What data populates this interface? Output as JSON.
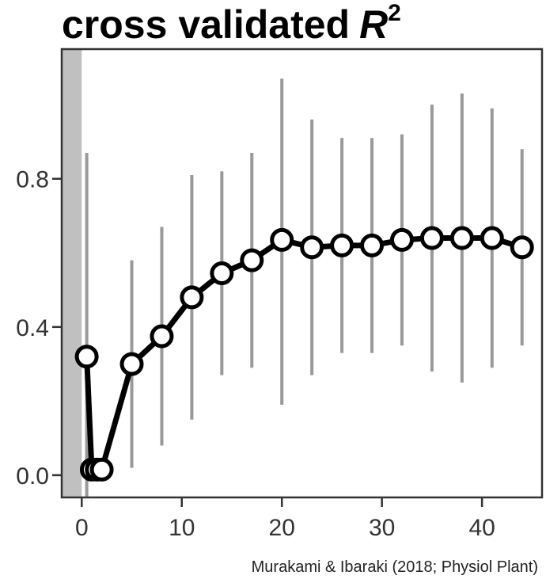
{
  "chart_data": {
    "type": "line",
    "title": "cross validated",
    "title_symbol": "R",
    "title_superscript": "2",
    "xlabel": "",
    "ylabel": "",
    "xlim": [
      -2,
      46
    ],
    "ylim": [
      -0.06,
      1.15
    ],
    "xticks": [
      0,
      10,
      20,
      30,
      40
    ],
    "yticks": [
      0.0,
      0.4,
      0.8
    ],
    "ytick_labels": [
      "0.0",
      "0.4",
      "0.8"
    ],
    "grid": false,
    "shaded_region": {
      "x": [
        -2,
        0
      ],
      "color": "#c0c0c0"
    },
    "points": [
      {
        "x": 0.5,
        "y": 0.32,
        "ymin": null,
        "ymax": 0.87
      },
      {
        "x": 1,
        "y": 0.015,
        "ymin": null,
        "ymax": null
      },
      {
        "x": 1.5,
        "y": 0.015,
        "ymin": null,
        "ymax": null
      },
      {
        "x": 2,
        "y": 0.015,
        "ymin": null,
        "ymax": null
      },
      {
        "x": 5,
        "y": 0.3,
        "ymin": 0.02,
        "ymax": 0.58
      },
      {
        "x": 8,
        "y": 0.375,
        "ymin": 0.08,
        "ymax": 0.67
      },
      {
        "x": 11,
        "y": 0.48,
        "ymin": 0.15,
        "ymax": 0.81
      },
      {
        "x": 14,
        "y": 0.545,
        "ymin": 0.27,
        "ymax": 0.82
      },
      {
        "x": 17,
        "y": 0.58,
        "ymin": 0.29,
        "ymax": 0.87
      },
      {
        "x": 20,
        "y": 0.635,
        "ymin": 0.19,
        "ymax": 1.07
      },
      {
        "x": 23,
        "y": 0.615,
        "ymin": 0.27,
        "ymax": 0.96
      },
      {
        "x": 26,
        "y": 0.62,
        "ymin": 0.33,
        "ymax": 0.91
      },
      {
        "x": 29,
        "y": 0.62,
        "ymin": 0.33,
        "ymax": 0.91
      },
      {
        "x": 32,
        "y": 0.635,
        "ymin": 0.35,
        "ymax": 0.92
      },
      {
        "x": 35,
        "y": 0.64,
        "ymin": 0.28,
        "ymax": 1.0
      },
      {
        "x": 38,
        "y": 0.64,
        "ymin": 0.25,
        "ymax": 1.03
      },
      {
        "x": 41,
        "y": 0.64,
        "ymin": 0.29,
        "ymax": 0.99
      },
      {
        "x": 44,
        "y": 0.615,
        "ymin": 0.35,
        "ymax": 0.88
      }
    ],
    "colors": {
      "line": "#000000",
      "marker_fill": "#ffffff",
      "errorbar": "#999999",
      "frame": "#333333"
    },
    "annotation": "Murakami & Ibaraki (2018; Physiol Plant)"
  }
}
